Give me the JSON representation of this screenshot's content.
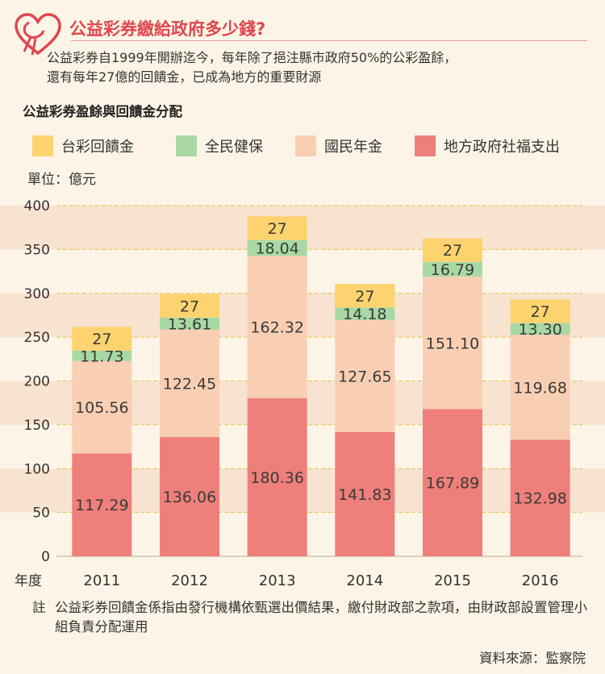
{
  "title": "公益彩券繳給政府多少錢?",
  "subtitle": {
    "line1": "公益彩券自1999年開辦迄今，每年除了挹注縣市政府50%的公彩盈餘，",
    "line2": "還有每年27億的回饋金，已成為地方的重要財源"
  },
  "chart_title": "公益彩券盈餘與回饋金分配",
  "unit_label": "單位：億元",
  "year_label": "年度",
  "note_mark": "註",
  "note": "公益彩券回饋金係指由發行機構依甄選出價結果，繳付財政部之款項，由財政部設置管理小組負責分配運用",
  "source": "資料來源：監察院",
  "colors": {
    "background": "#fcf5e7",
    "band": "#f8e3d0",
    "title": "#e0464e",
    "grid": "#e6c24b"
  },
  "chart_data": {
    "type": "bar",
    "stacked": true,
    "categories": [
      "2011",
      "2012",
      "2013",
      "2014",
      "2015",
      "2016"
    ],
    "ylim": [
      0,
      400
    ],
    "yticks": [
      0,
      50,
      100,
      150,
      200,
      250,
      300,
      350,
      400
    ],
    "grid": true,
    "legend_position": "top",
    "series": [
      {
        "name": "地方政府社福支出",
        "color": "#ee7f7a",
        "labels": [
          "117.29",
          "136.06",
          "180.36",
          "141.83",
          "167.89",
          "132.98"
        ],
        "values": [
          117.29,
          136.06,
          180.36,
          141.83,
          167.89,
          132.98
        ]
      },
      {
        "name": "國民年金",
        "color": "#f9cfb4",
        "labels": [
          "105.56",
          "122.45",
          "162.32",
          "127.65",
          "151.10",
          "119.68"
        ],
        "values": [
          105.56,
          122.45,
          162.32,
          127.65,
          151.1,
          119.68
        ]
      },
      {
        "name": "全民健保",
        "color": "#a8d9a4",
        "labels": [
          "11.73",
          "13.61",
          "18.04",
          "14.18",
          "16.79",
          "13.30"
        ],
        "values": [
          11.73,
          13.61,
          18.04,
          14.18,
          16.79,
          13.3
        ]
      },
      {
        "name": "台彩回饋金",
        "color": "#fcd36e",
        "labels": [
          "27",
          "27",
          "27",
          "27",
          "27",
          "27"
        ],
        "values": [
          27,
          27,
          27,
          27,
          27,
          27
        ]
      }
    ],
    "legend_order": [
      3,
      2,
      1,
      0
    ]
  }
}
